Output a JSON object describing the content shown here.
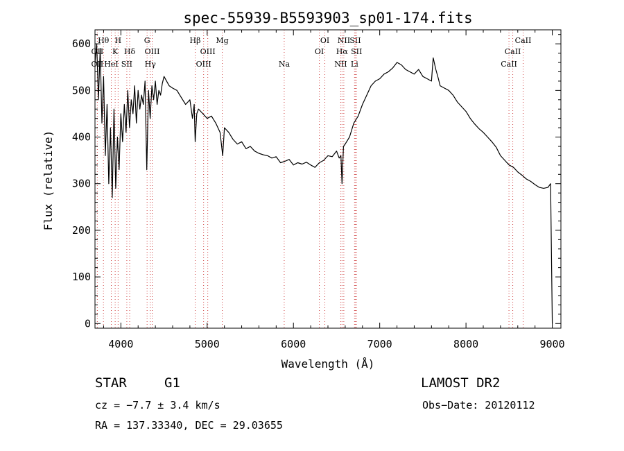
{
  "chart_data": {
    "type": "line",
    "title": "spec-55939-B5593903_sp01-174.fits",
    "xlabel": "Wavelength (Å)",
    "ylabel": "Flux (relative)",
    "xlim": [
      3700,
      9100
    ],
    "ylim": [
      -10,
      630
    ],
    "xticks": [
      4000,
      5000,
      6000,
      7000,
      8000,
      9000
    ],
    "yticks": [
      0,
      100,
      200,
      300,
      400,
      500,
      600
    ],
    "grid": false,
    "series": [
      {
        "x": [
          3700,
          3720,
          3740,
          3760,
          3780,
          3800,
          3820,
          3840,
          3860,
          3880,
          3900,
          3920,
          3940,
          3960,
          3980,
          4000,
          4020,
          4040,
          4060,
          4080,
          4100,
          4120,
          4140,
          4160,
          4180,
          4200,
          4220,
          4240,
          4260,
          4280,
          4300,
          4320,
          4340,
          4360,
          4380,
          4400,
          4420,
          4440,
          4460,
          4480,
          4500,
          4530,
          4560,
          4600,
          4650,
          4700,
          4750,
          4800,
          4830,
          4850,
          4861,
          4880,
          4900,
          4950,
          5000,
          5050,
          5100,
          5150,
          5180,
          5200,
          5250,
          5300,
          5350,
          5400,
          5450,
          5500,
          5550,
          5600,
          5650,
          5700,
          5750,
          5800,
          5850,
          5900,
          5950,
          6000,
          6050,
          6100,
          6150,
          6200,
          6250,
          6300,
          6350,
          6400,
          6450,
          6500,
          6530,
          6550,
          6563,
          6580,
          6600,
          6650,
          6700,
          6750,
          6800,
          6850,
          6900,
          6950,
          7000,
          7050,
          7100,
          7150,
          7200,
          7250,
          7300,
          7350,
          7400,
          7450,
          7500,
          7550,
          7600,
          7620,
          7650,
          7680,
          7700,
          7750,
          7800,
          7850,
          7900,
          7950,
          8000,
          8050,
          8100,
          8150,
          8200,
          8250,
          8300,
          8350,
          8400,
          8450,
          8500,
          8550,
          8600,
          8650,
          8700,
          8750,
          8800,
          8850,
          8900,
          8950,
          8980,
          9000
        ],
        "y": [
          560,
          600,
          480,
          590,
          430,
          530,
          360,
          470,
          300,
          420,
          270,
          460,
          290,
          400,
          330,
          450,
          390,
          470,
          410,
          500,
          420,
          480,
          450,
          510,
          430,
          500,
          460,
          490,
          470,
          520,
          330,
          500,
          440,
          510,
          480,
          520,
          470,
          500,
          490,
          515,
          530,
          520,
          510,
          505,
          500,
          485,
          470,
          480,
          440,
          470,
          390,
          450,
          460,
          450,
          440,
          445,
          430,
          410,
          360,
          420,
          410,
          395,
          385,
          390,
          375,
          380,
          370,
          365,
          362,
          360,
          355,
          358,
          345,
          348,
          352,
          340,
          345,
          342,
          346,
          340,
          335,
          345,
          350,
          360,
          358,
          370,
          355,
          360,
          300,
          380,
          385,
          400,
          430,
          445,
          470,
          490,
          510,
          520,
          525,
          535,
          540,
          548,
          560,
          555,
          545,
          540,
          535,
          545,
          530,
          525,
          520,
          570,
          545,
          525,
          510,
          505,
          500,
          490,
          475,
          465,
          455,
          440,
          428,
          418,
          410,
          400,
          390,
          378,
          360,
          350,
          340,
          335,
          325,
          318,
          310,
          305,
          298,
          292,
          290,
          292,
          300,
          0
        ]
      }
    ],
    "line_markers": [
      {
        "label": "Hθ",
        "x": 3798,
        "row": 1
      },
      {
        "label": "OII",
        "x": 3727,
        "row": 2
      },
      {
        "label": "OII",
        "x": 3727,
        "row": 3
      },
      {
        "label": "K",
        "x": 3934,
        "row": 2
      },
      {
        "label": "H",
        "x": 3968,
        "row": 1
      },
      {
        "label": "HeI",
        "x": 3889,
        "row": 3
      },
      {
        "label": "Hδ",
        "x": 4102,
        "row": 2
      },
      {
        "label": "SII",
        "x": 4069,
        "row": 3
      },
      {
        "label": "G",
        "x": 4304,
        "row": 1
      },
      {
        "label": "OIII",
        "x": 4363,
        "row": 2
      },
      {
        "label": "Hγ",
        "x": 4341,
        "row": 3
      },
      {
        "label": "Hβ",
        "x": 4861,
        "row": 1
      },
      {
        "label": "OIII",
        "x": 5007,
        "row": 2
      },
      {
        "label": "OIII",
        "x": 4959,
        "row": 3
      },
      {
        "label": "Mg",
        "x": 5175,
        "row": 1
      },
      {
        "label": "Na",
        "x": 5893,
        "row": 3
      },
      {
        "label": "OI",
        "x": 6364,
        "row": 1
      },
      {
        "label": "OI",
        "x": 6300,
        "row": 2
      },
      {
        "label": "NII",
        "x": 6584,
        "row": 1
      },
      {
        "label": "SII",
        "x": 6717,
        "row": 1
      },
      {
        "label": "Hα",
        "x": 6563,
        "row": 2
      },
      {
        "label": "SII",
        "x": 6731,
        "row": 2
      },
      {
        "label": "NII",
        "x": 6548,
        "row": 3
      },
      {
        "label": "Li",
        "x": 6708,
        "row": 3
      },
      {
        "label": "CaII",
        "x": 8662,
        "row": 1
      },
      {
        "label": "CaII",
        "x": 8542,
        "row": 2
      },
      {
        "label": "CaII",
        "x": 8498,
        "row": 3
      }
    ],
    "marker_color": "#d04040"
  },
  "info": {
    "class": "STAR",
    "subclass": "G1",
    "survey": "LAMOST DR2",
    "cz": "cz = −7.7 ± 3.4 km/s",
    "obs_date": "Obs−Date: 20120112",
    "radec": "RA = 137.33340, DEC =  29.03655"
  }
}
